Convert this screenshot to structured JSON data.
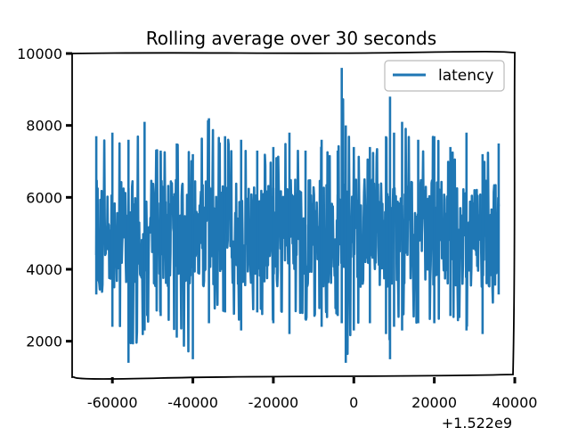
{
  "chart_data": {
    "type": "line",
    "title": "Rolling average over 30 seconds",
    "xlabel": "",
    "ylabel": "",
    "x_offset_label": "+1.522e9",
    "xlim": [
      -70000,
      40000
    ],
    "ylim": [
      1000,
      10000
    ],
    "x_ticks": [
      -60000,
      -40000,
      -20000,
      0,
      20000,
      40000
    ],
    "x_tick_labels": [
      "-60000",
      "-40000",
      "-20000",
      "0",
      "20000",
      "40000"
    ],
    "y_ticks": [
      2000,
      4000,
      6000,
      8000,
      10000
    ],
    "y_tick_labels": [
      "2000",
      "4000",
      "6000",
      "8000",
      "10000"
    ],
    "legend_position": "top-right",
    "grid": false,
    "series": [
      {
        "name": "latency",
        "color": "#1f77b4",
        "x": [
          -64000,
          -60000,
          -56000,
          -52000,
          -48000,
          -44000,
          -40000,
          -36000,
          -32000,
          -28000,
          -24000,
          -20000,
          -16000,
          -12000,
          -8000,
          -4000,
          -3000,
          -2000,
          0,
          4000,
          8000,
          9000,
          10000,
          12000,
          16000,
          20000,
          24000,
          28000,
          32000,
          36000
        ],
        "low": [
          3300,
          2400,
          1400,
          2300,
          2700,
          2100,
          1500,
          2500,
          2800,
          2300,
          2800,
          2500,
          2200,
          2600,
          2400,
          2700,
          2500,
          1400,
          2300,
          2500,
          2200,
          1500,
          2400,
          2300,
          2500,
          2500,
          2700,
          2300,
          2200,
          3300
        ],
        "high": [
          7700,
          7800,
          7600,
          8100,
          7300,
          7500,
          7200,
          8200,
          7700,
          7600,
          7300,
          7400,
          7800,
          7300,
          7600,
          7300,
          9600,
          8000,
          7400,
          7400,
          7700,
          8800,
          7800,
          8100,
          7600,
          7700,
          7400,
          7800,
          7200,
          7500
        ],
        "mean": 5000
      }
    ]
  }
}
